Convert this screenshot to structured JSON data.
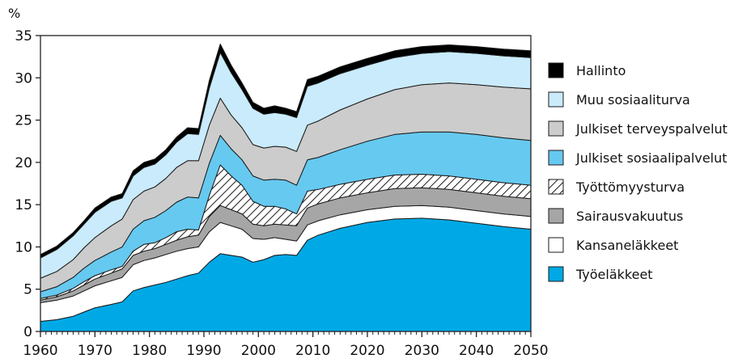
{
  "chart_data": {
    "type": "area",
    "stacked": true,
    "unit_label": "%",
    "title": "",
    "xlabel": "",
    "ylabel": "",
    "xlim": [
      1960,
      2050
    ],
    "ylim": [
      0,
      35
    ],
    "x_ticks": [
      1960,
      1970,
      1980,
      1990,
      2000,
      2010,
      2020,
      2030,
      2040,
      2050
    ],
    "y_ticks": [
      0,
      5,
      10,
      15,
      20,
      25,
      30,
      35
    ],
    "grid": false,
    "legend_position": "right",
    "x": [
      1960,
      1963,
      1966,
      1968,
      1970,
      1973,
      1975,
      1977,
      1979,
      1981,
      1983,
      1985,
      1987,
      1989,
      1991,
      1993,
      1995,
      1997,
      1999,
      2001,
      2003,
      2005,
      2007,
      2009,
      2011,
      2015,
      2020,
      2025,
      2030,
      2035,
      2040,
      2045,
      2050
    ],
    "series": [
      {
        "name": "Työeläkkeet",
        "color": "#00a9e6",
        "values": [
          1.2,
          1.4,
          1.8,
          2.3,
          2.8,
          3.2,
          3.5,
          4.8,
          5.2,
          5.5,
          5.8,
          6.2,
          6.6,
          6.9,
          8.2,
          9.2,
          9.0,
          8.8,
          8.2,
          8.5,
          9.0,
          9.1,
          9.0,
          10.8,
          11.4,
          12.2,
          12.9,
          13.3,
          13.4,
          13.2,
          12.8,
          12.4,
          12.1
        ]
      },
      {
        "name": "Kansaneläkkeet",
        "color": "#ffffff",
        "values": [
          2.2,
          2.3,
          2.4,
          2.5,
          2.6,
          2.8,
          2.9,
          3.1,
          3.2,
          3.2,
          3.3,
          3.3,
          3.2,
          3.1,
          3.6,
          3.7,
          3.5,
          3.3,
          2.8,
          2.4,
          2.1,
          1.8,
          1.7,
          1.8,
          1.7,
          1.6,
          1.5,
          1.5,
          1.5,
          1.5,
          1.5,
          1.5,
          1.5
        ]
      },
      {
        "name": "Sairausvakuutus",
        "color": "#a6a6a6",
        "values": [
          0.3,
          0.4,
          0.6,
          0.7,
          0.8,
          0.9,
          1.0,
          1.1,
          1.1,
          1.1,
          1.2,
          1.3,
          1.4,
          1.4,
          1.8,
          2.0,
          1.9,
          1.8,
          1.7,
          1.6,
          1.6,
          1.7,
          1.8,
          2.0,
          2.0,
          2.0,
          2.0,
          2.1,
          2.1,
          2.1,
          2.1,
          2.1,
          2.1
        ]
      },
      {
        "name": "Työttömyysturva",
        "color": "#ffffff",
        "pattern": "hatch",
        "values": [
          0.2,
          0.2,
          0.3,
          0.4,
          0.4,
          0.4,
          0.3,
          0.5,
          0.8,
          0.7,
          0.8,
          1.0,
          0.9,
          0.6,
          2.5,
          4.8,
          4.0,
          3.4,
          2.7,
          2.3,
          2.1,
          1.9,
          1.4,
          2.0,
          1.7,
          1.6,
          1.6,
          1.6,
          1.6,
          1.6,
          1.6,
          1.6,
          1.6
        ]
      },
      {
        "name": "Julkiset sosiaalipalvelut",
        "color": "#66c9f0",
        "values": [
          0.8,
          1.0,
          1.3,
          1.6,
          1.8,
          2.1,
          2.3,
          2.6,
          2.8,
          3.0,
          3.2,
          3.5,
          3.8,
          3.8,
          3.8,
          3.5,
          3.2,
          3.0,
          3.0,
          3.1,
          3.2,
          3.4,
          3.4,
          3.7,
          3.8,
          4.1,
          4.5,
          4.8,
          5.0,
          5.2,
          5.3,
          5.3,
          5.3
        ]
      },
      {
        "name": "Julkiset terveyspalvelut",
        "color": "#cccccc",
        "values": [
          1.6,
          1.8,
          2.1,
          2.4,
          2.7,
          3.1,
          3.3,
          3.5,
          3.5,
          3.6,
          3.8,
          4.1,
          4.3,
          4.4,
          4.5,
          4.4,
          4.0,
          3.8,
          3.7,
          3.8,
          3.9,
          3.9,
          4.0,
          4.1,
          4.3,
          4.7,
          5.0,
          5.3,
          5.6,
          5.8,
          5.9,
          6.0,
          6.1
        ]
      },
      {
        "name": "Muu sosiaaliturva",
        "color": "#c9ebfb",
        "values": [
          2.4,
          2.6,
          2.8,
          2.8,
          3.0,
          2.9,
          2.5,
          2.8,
          2.8,
          2.7,
          2.8,
          3.0,
          3.2,
          3.1,
          4.4,
          5.4,
          5.0,
          4.5,
          4.3,
          4.0,
          4.0,
          3.9,
          4.0,
          4.6,
          4.5,
          4.3,
          4.0,
          3.8,
          3.7,
          3.7,
          3.7,
          3.7,
          3.7
        ]
      },
      {
        "name": "Hallinto",
        "color": "#000000",
        "values": [
          0.4,
          0.4,
          0.4,
          0.4,
          0.5,
          0.5,
          0.5,
          0.6,
          0.6,
          0.6,
          0.6,
          0.6,
          0.7,
          0.7,
          0.9,
          1.0,
          0.9,
          0.8,
          0.7,
          0.7,
          0.8,
          0.7,
          0.7,
          0.8,
          0.8,
          0.8,
          0.8,
          0.8,
          0.8,
          0.8,
          0.8,
          0.8,
          0.8
        ]
      }
    ]
  }
}
